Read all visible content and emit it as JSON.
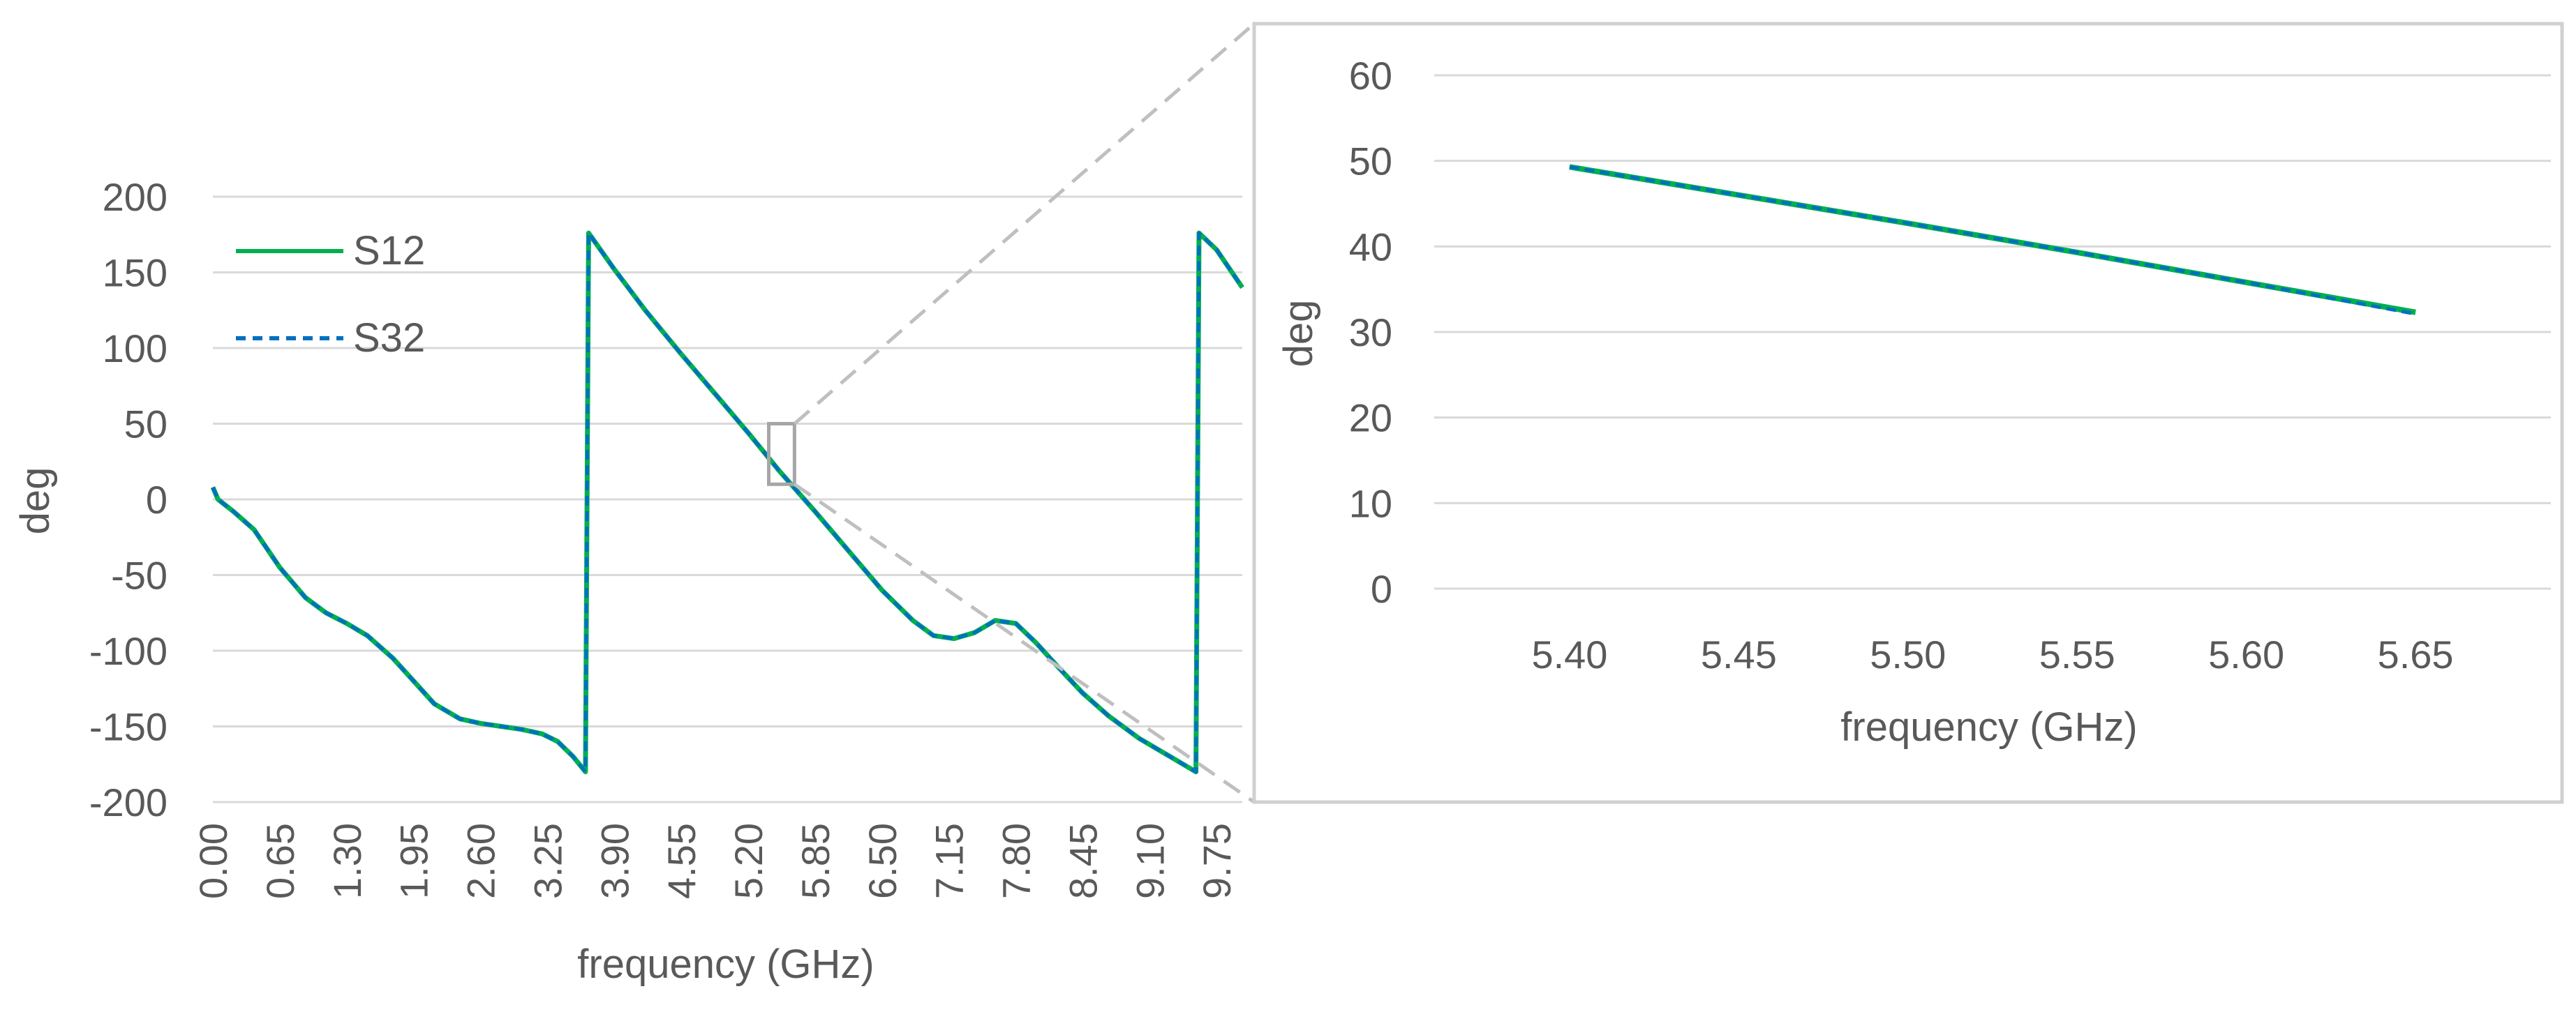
{
  "chart_data": [
    {
      "type": "line",
      "title": "",
      "xlabel": "frequency (GHz)",
      "ylabel": "deg",
      "xlim": [
        0,
        10.0
      ],
      "ylim": [
        -200,
        200
      ],
      "x_tick_labels": [
        "0.00",
        "0.65",
        "1.30",
        "1.95",
        "2.60",
        "3.25",
        "3.90",
        "4.55",
        "5.20",
        "5.85",
        "6.50",
        "7.15",
        "7.80",
        "8.45",
        "9.10",
        "9.75"
      ],
      "y_tick_labels": [
        "200",
        "150",
        "100",
        "50",
        "0",
        "-50",
        "-100",
        "-150",
        "-200"
      ],
      "grid": true,
      "legend": "top-left",
      "colors": {
        "S12": "#00b050",
        "S32": "#0070c0"
      },
      "series": [
        {
          "name": "S12",
          "style": "solid",
          "x": [
            0.0,
            0.05,
            0.2,
            0.4,
            0.65,
            0.9,
            1.1,
            1.3,
            1.5,
            1.75,
            1.95,
            2.15,
            2.4,
            2.6,
            2.8,
            3.0,
            3.2,
            3.35,
            3.5,
            3.62,
            3.65,
            3.9,
            4.2,
            4.55,
            4.9,
            5.2,
            5.5,
            5.85,
            6.2,
            6.5,
            6.8,
            7.0,
            7.2,
            7.4,
            7.6,
            7.8,
            8.0,
            8.2,
            8.45,
            8.7,
            9.0,
            9.3,
            9.55,
            9.58,
            9.75,
            10.0
          ],
          "y": [
            8,
            0,
            -8,
            -20,
            -45,
            -65,
            -75,
            -82,
            -90,
            -105,
            -120,
            -135,
            -145,
            -148,
            -150,
            -152,
            -155,
            -160,
            -170,
            -180,
            176,
            152,
            125,
            96,
            68,
            44,
            19,
            -8,
            -36,
            -60,
            -80,
            -90,
            -92,
            -88,
            -80,
            -82,
            -95,
            -110,
            -128,
            -143,
            -158,
            -170,
            -180,
            176,
            165,
            140
          ]
        },
        {
          "name": "S32",
          "style": "dashed",
          "x": [
            0.0,
            0.05,
            0.2,
            0.4,
            0.65,
            0.9,
            1.1,
            1.3,
            1.5,
            1.75,
            1.95,
            2.15,
            2.4,
            2.6,
            2.8,
            3.0,
            3.2,
            3.35,
            3.5,
            3.62,
            3.65,
            3.9,
            4.2,
            4.55,
            4.9,
            5.2,
            5.5,
            5.85,
            6.2,
            6.5,
            6.8,
            7.0,
            7.2,
            7.4,
            7.6,
            7.8,
            8.0,
            8.2,
            8.45,
            8.7,
            9.0,
            9.3,
            9.55,
            9.58,
            9.75,
            10.0
          ],
          "y": [
            8,
            0,
            -8,
            -20,
            -45,
            -65,
            -75,
            -82,
            -90,
            -105,
            -120,
            -135,
            -145,
            -148,
            -150,
            -152,
            -155,
            -160,
            -170,
            -180,
            176,
            152,
            125,
            96,
            68,
            44,
            19,
            -8,
            -36,
            -60,
            -80,
            -90,
            -92,
            -88,
            -80,
            -82,
            -95,
            -110,
            -128,
            -143,
            -158,
            -170,
            -180,
            176,
            165,
            140
          ]
        }
      ],
      "zoom_region": {
        "x": [
          5.4,
          5.65
        ],
        "y": [
          10,
          50
        ]
      }
    },
    {
      "type": "line",
      "title": "",
      "xlabel": "frequency (GHz)",
      "ylabel": "deg",
      "xlim": [
        5.36,
        5.69
      ],
      "ylim": [
        0,
        60
      ],
      "x_tick_labels": [
        "5.40",
        "5.45",
        "5.50",
        "5.55",
        "5.60",
        "5.65"
      ],
      "x_tick_values": [
        5.4,
        5.45,
        5.5,
        5.55,
        5.6,
        5.65
      ],
      "y_tick_labels": [
        "60",
        "50",
        "40",
        "30",
        "20",
        "10",
        "0"
      ],
      "grid": true,
      "colors": {
        "S12": "#00b050",
        "S32": "#0070c0"
      },
      "series": [
        {
          "name": "S12",
          "style": "solid",
          "x": [
            5.4,
            5.45,
            5.5,
            5.55,
            5.6,
            5.65
          ],
          "y": [
            49.3,
            46.0,
            42.7,
            39.3,
            35.8,
            32.3
          ]
        },
        {
          "name": "S32",
          "style": "dashed",
          "x": [
            5.4,
            5.45,
            5.5,
            5.55,
            5.6,
            5.65
          ],
          "y": [
            49.3,
            46.0,
            42.7,
            39.3,
            35.8,
            32.1
          ]
        }
      ]
    }
  ]
}
